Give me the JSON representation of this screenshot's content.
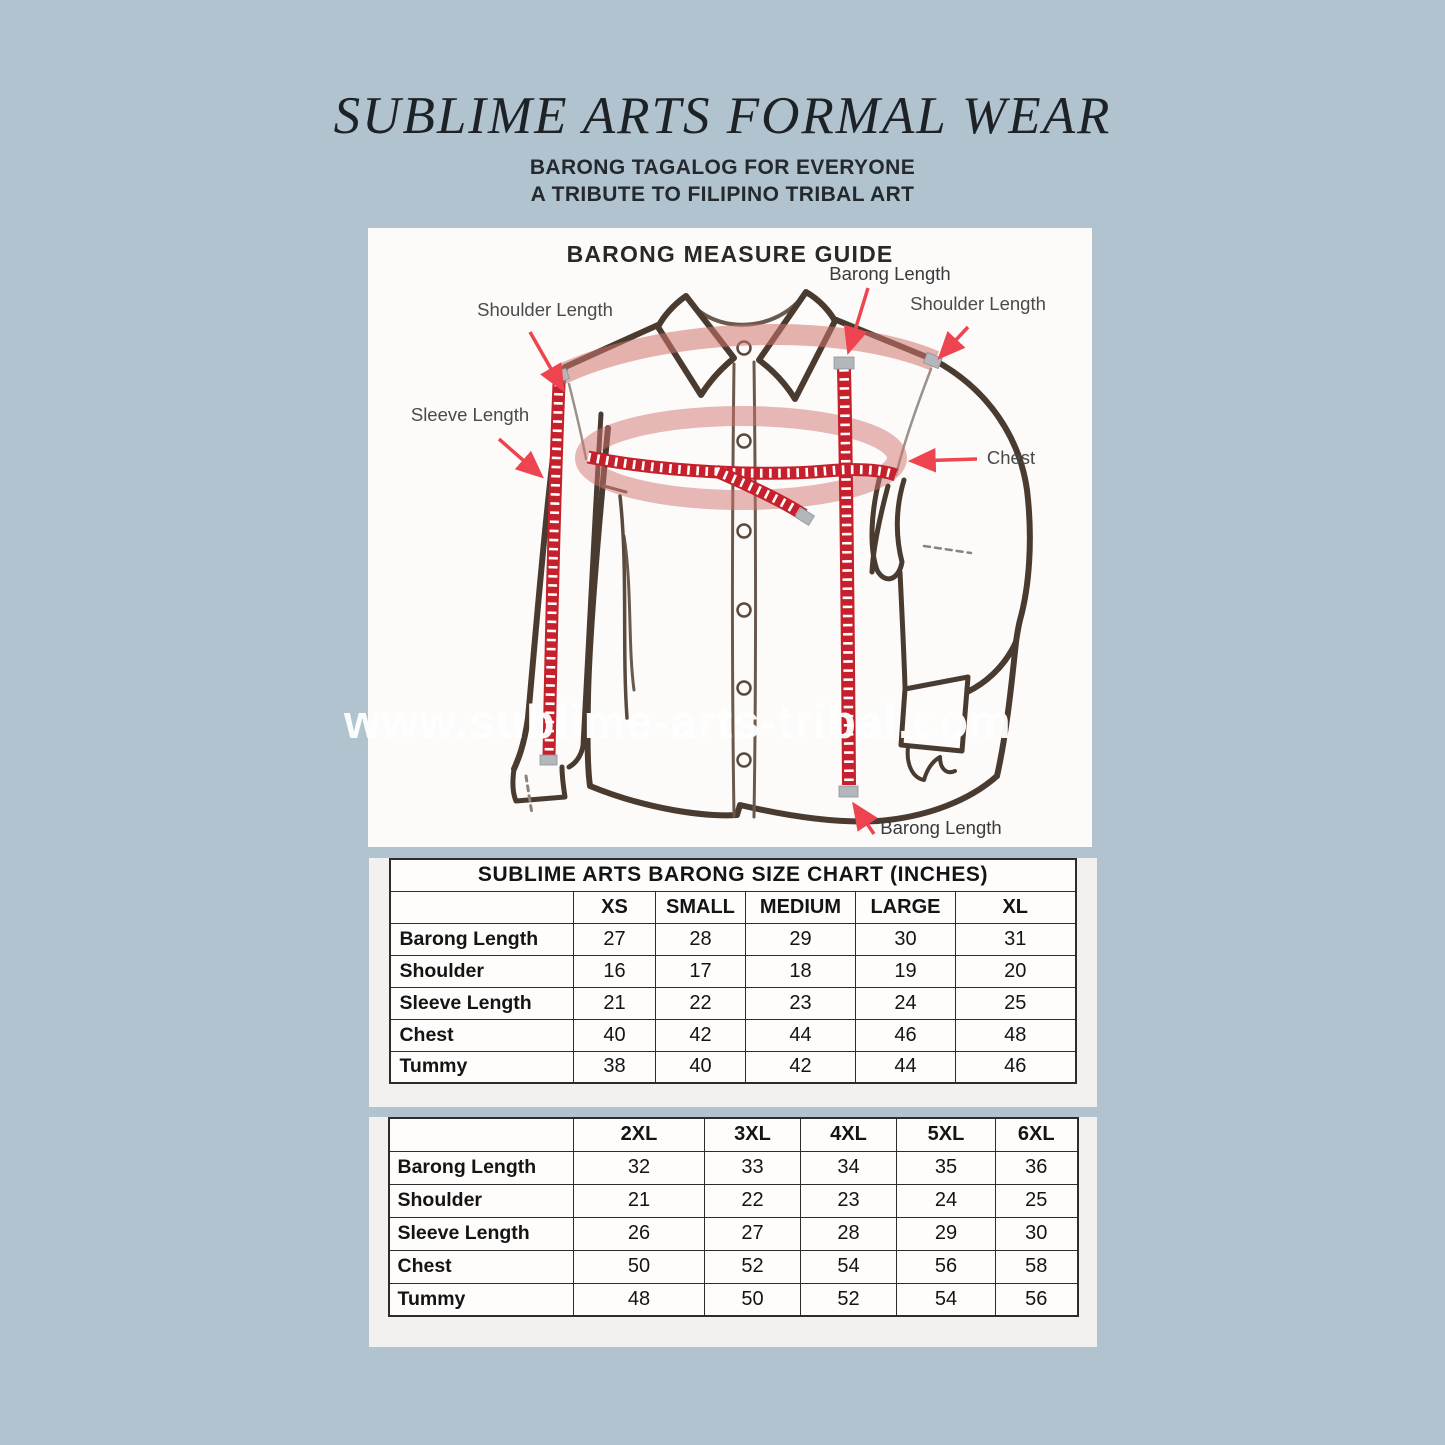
{
  "header": {
    "title": "SUBLIME ARTS FORMAL WEAR",
    "subtitle_line1": "BARONG TAGALOG FOR EVERYONE",
    "subtitle_line2": "A TRIBUTE TO FILIPINO TRIBAL ART"
  },
  "measure_guide": {
    "title": "BARONG MEASURE GUIDE",
    "labels": {
      "barong_length_top": "Barong Length",
      "shoulder_length_left": "Shoulder Length",
      "shoulder_length_right": "Shoulder Length",
      "sleeve_length": "Sleeve Length",
      "chest": "Chest",
      "barong_length_bottom": "Barong Length"
    }
  },
  "watermark": "www.sublime-arts-tribal.com",
  "size_charts": [
    {
      "title": "SUBLIME ARTS BARONG SIZE CHART (INCHES)",
      "columns": [
        "",
        "XS",
        "SMALL",
        "MEDIUM",
        "LARGE",
        "XL"
      ],
      "rows": [
        {
          "label": "Barong Length",
          "values": [
            "27",
            "28",
            "29",
            "30",
            "31"
          ]
        },
        {
          "label": "Shoulder",
          "values": [
            "16",
            "17",
            "18",
            "19",
            "20"
          ]
        },
        {
          "label": "Sleeve Length",
          "values": [
            "21",
            "22",
            "23",
            "24",
            "25"
          ]
        },
        {
          "label": "Chest",
          "values": [
            "40",
            "42",
            "44",
            "46",
            "48"
          ]
        },
        {
          "label": "Tummy",
          "values": [
            "38",
            "40",
            "42",
            "44",
            "46"
          ]
        }
      ]
    },
    {
      "title": "",
      "columns": [
        "",
        "2XL",
        "3XL",
        "4XL",
        "5XL",
        "6XL"
      ],
      "rows": [
        {
          "label": "Barong Length",
          "values": [
            "32",
            "33",
            "34",
            "35",
            "36"
          ]
        },
        {
          "label": "Shoulder",
          "values": [
            "21",
            "22",
            "23",
            "24",
            "25"
          ]
        },
        {
          "label": "Sleeve Length",
          "values": [
            "26",
            "27",
            "28",
            "29",
            "30"
          ]
        },
        {
          "label": "Chest",
          "values": [
            "50",
            "52",
            "54",
            "56",
            "58"
          ]
        },
        {
          "label": "Tummy",
          "values": [
            "48",
            "50",
            "52",
            "54",
            "56"
          ]
        }
      ]
    }
  ],
  "colors": {
    "background": "#b0c3ce",
    "panel_white": "#fcfbfa",
    "panel_gray": "#f3f1ef",
    "tape_red": "#c5202b",
    "band_pink": "#cf746e",
    "ink_brown": "#4a3b31",
    "arrow_red": "#ee4450"
  }
}
